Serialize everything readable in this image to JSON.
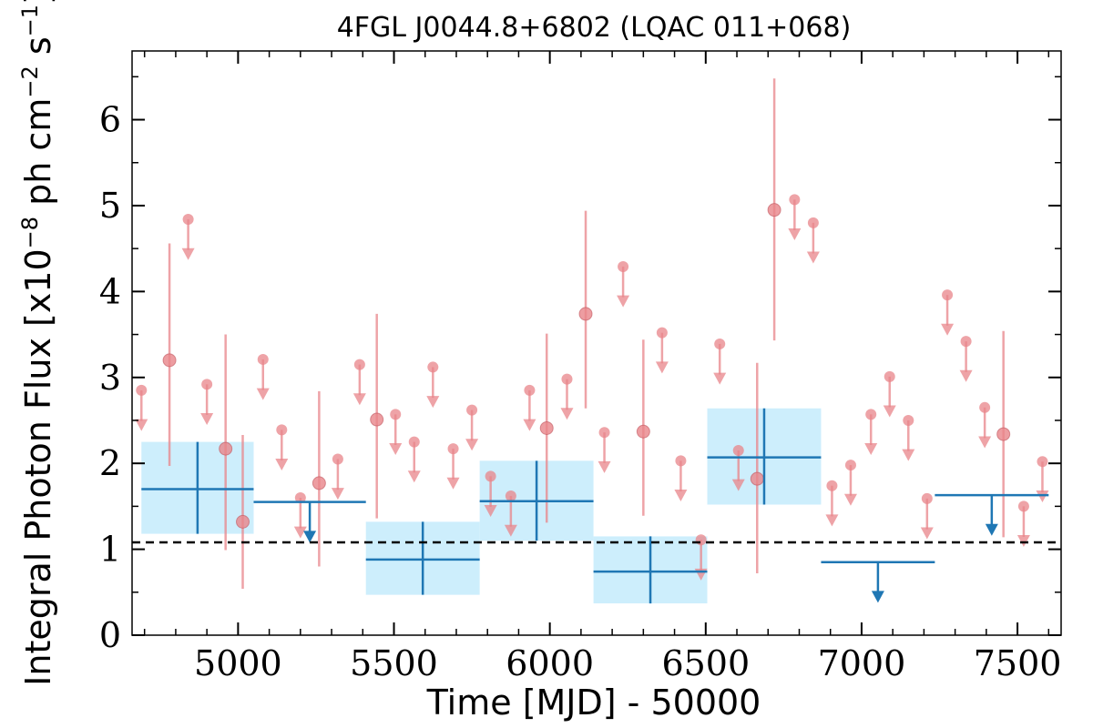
{
  "chart_data": {
    "type": "scatter",
    "title": "4FGL J0044.8+6802 (LQAC 011+068)",
    "xlabel": "Time [MJD] - 50000",
    "ylabel": "Integral Photon Flux [x10",
    "ylabel_exp1": "−8",
    "ylabel_mid": " ph cm",
    "ylabel_exp2": "−2",
    "ylabel_s": " s",
    "ylabel_exp3": "−1",
    "ylabel_end": "]",
    "xlim": [
      4660,
      7640
    ],
    "ylim": [
      0,
      6.8
    ],
    "xticks": [
      5000,
      5500,
      6000,
      6500,
      7000,
      7500
    ],
    "xtick_labels": [
      "5000",
      "5500",
      "6000",
      "6500",
      "7000",
      "7500"
    ],
    "yticks": [
      0,
      1,
      2,
      3,
      4,
      5,
      6
    ],
    "ytick_labels": [
      "0",
      "1",
      "2",
      "3",
      "4",
      "5",
      "6"
    ],
    "mean_flux": 1.08,
    "colors": {
      "fine": "#e8848a",
      "coarse": "#1f77b4",
      "coarse_band": "#cdeefc",
      "mean_line": "#000000"
    },
    "fine_bins": [
      {
        "x": 4690,
        "y": 2.85,
        "ul": true
      },
      {
        "x": 4780,
        "y": 3.2,
        "lo": 1.97,
        "hi": 4.56
      },
      {
        "x": 4840,
        "y": 4.84,
        "ul": true
      },
      {
        "x": 4900,
        "y": 2.92,
        "ul": true
      },
      {
        "x": 4960,
        "y": 2.17,
        "lo": 0.99,
        "hi": 3.5
      },
      {
        "x": 5015,
        "y": 1.32,
        "lo": 0.54,
        "hi": 2.33
      },
      {
        "x": 5080,
        "y": 3.21,
        "ul": true
      },
      {
        "x": 5140,
        "y": 2.39,
        "ul": true
      },
      {
        "x": 5200,
        "y": 1.6,
        "ul": true
      },
      {
        "x": 5260,
        "y": 1.77,
        "lo": 0.8,
        "hi": 2.84
      },
      {
        "x": 5320,
        "y": 2.05,
        "ul": true
      },
      {
        "x": 5390,
        "y": 3.15,
        "ul": true
      },
      {
        "x": 5445,
        "y": 2.51,
        "lo": 1.36,
        "hi": 3.74
      },
      {
        "x": 5505,
        "y": 2.57,
        "ul": true
      },
      {
        "x": 5565,
        "y": 2.25,
        "ul": true
      },
      {
        "x": 5625,
        "y": 3.12,
        "ul": true
      },
      {
        "x": 5690,
        "y": 2.17,
        "ul": true
      },
      {
        "x": 5750,
        "y": 2.62,
        "ul": true
      },
      {
        "x": 5810,
        "y": 1.85,
        "ul": true
      },
      {
        "x": 5875,
        "y": 1.62,
        "ul": true
      },
      {
        "x": 5935,
        "y": 2.85,
        "ul": true
      },
      {
        "x": 5990,
        "y": 2.41,
        "lo": 1.31,
        "hi": 3.51
      },
      {
        "x": 6055,
        "y": 2.98,
        "ul": true
      },
      {
        "x": 6115,
        "y": 3.74,
        "lo": 2.64,
        "hi": 4.94
      },
      {
        "x": 6175,
        "y": 2.36,
        "ul": true
      },
      {
        "x": 6235,
        "y": 4.29,
        "ul": true
      },
      {
        "x": 6300,
        "y": 2.37,
        "lo": 1.39,
        "hi": 3.44
      },
      {
        "x": 6360,
        "y": 3.52,
        "ul": true
      },
      {
        "x": 6420,
        "y": 2.03,
        "ul": true
      },
      {
        "x": 6485,
        "y": 1.11,
        "ul": true
      },
      {
        "x": 6545,
        "y": 3.39,
        "ul": true
      },
      {
        "x": 6605,
        "y": 2.15,
        "ul": true
      },
      {
        "x": 6665,
        "y": 1.82,
        "lo": 0.72,
        "hi": 3.17
      },
      {
        "x": 6720,
        "y": 4.95,
        "lo": 3.43,
        "hi": 6.48
      },
      {
        "x": 6785,
        "y": 5.07,
        "ul": true
      },
      {
        "x": 6845,
        "y": 4.8,
        "ul": true
      },
      {
        "x": 6905,
        "y": 1.74,
        "ul": true
      },
      {
        "x": 6965,
        "y": 1.98,
        "ul": true
      },
      {
        "x": 7030,
        "y": 2.57,
        "ul": true
      },
      {
        "x": 7090,
        "y": 3.01,
        "ul": true
      },
      {
        "x": 7150,
        "y": 2.5,
        "ul": true
      },
      {
        "x": 7210,
        "y": 1.59,
        "ul": true
      },
      {
        "x": 7275,
        "y": 3.96,
        "ul": true
      },
      {
        "x": 7335,
        "y": 3.42,
        "ul": true
      },
      {
        "x": 7395,
        "y": 2.65,
        "ul": true
      },
      {
        "x": 7455,
        "y": 2.34,
        "lo": 1.14,
        "hi": 3.54
      },
      {
        "x": 7520,
        "y": 1.5,
        "ul": true
      },
      {
        "x": 7580,
        "y": 2.02,
        "ul": true
      }
    ],
    "coarse_bins": [
      {
        "x0": 4690,
        "x1": 5050,
        "y": 1.7,
        "lo": 1.18,
        "hi": 2.25,
        "band_lo": 1.18,
        "band_hi": 2.25
      },
      {
        "x0": 5050,
        "x1": 5410,
        "y": 1.55,
        "ul": true
      },
      {
        "x0": 5410,
        "x1": 5775,
        "y": 0.88,
        "lo": 0.47,
        "hi": 1.32,
        "band_lo": 0.47,
        "band_hi": 1.32
      },
      {
        "x0": 5775,
        "x1": 6140,
        "y": 1.56,
        "lo": 1.1,
        "hi": 2.03,
        "band_lo": 1.1,
        "band_hi": 2.03
      },
      {
        "x0": 6140,
        "x1": 6505,
        "y": 0.74,
        "lo": 0.37,
        "hi": 1.15,
        "band_lo": 0.37,
        "band_hi": 1.15
      },
      {
        "x0": 6505,
        "x1": 6870,
        "y": 2.07,
        "lo": 1.52,
        "hi": 2.64,
        "band_lo": 1.52,
        "band_hi": 2.64
      },
      {
        "x0": 6870,
        "x1": 7235,
        "y": 0.85,
        "ul": true
      },
      {
        "x0": 7235,
        "x1": 7600,
        "y": 1.63,
        "ul": true
      }
    ]
  }
}
